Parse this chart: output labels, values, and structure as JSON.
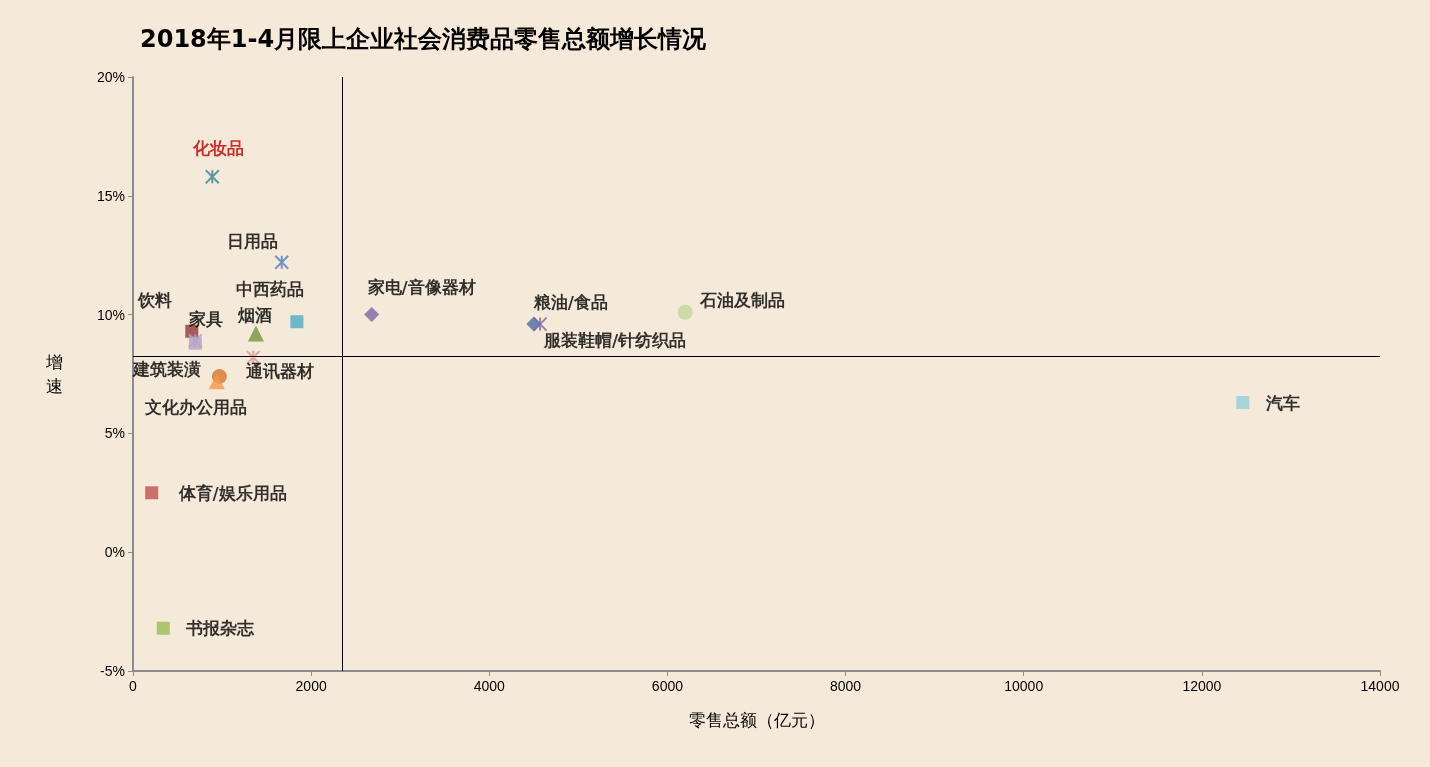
{
  "chart_data": {
    "type": "scatter",
    "title": "2018年1-4月限上企业社会消费品零售总额增长情况",
    "xlabel": "零售总额（亿元）",
    "ylabel": "增速",
    "xlim": [
      0,
      14000
    ],
    "xticks": [
      0,
      2000,
      4000,
      6000,
      8000,
      10000,
      12000,
      14000
    ],
    "ylim": [
      -5,
      20
    ],
    "yticks": [
      {
        "value": -5,
        "label": "-5%"
      },
      {
        "value": 0,
        "label": "0%"
      },
      {
        "value": 5,
        "label": "5%"
      },
      {
        "value": 10,
        "label": "10%"
      },
      {
        "value": 15,
        "label": "15%"
      },
      {
        "value": 20,
        "label": "20%"
      }
    ],
    "grid": false,
    "legend": false,
    "ref_lines": [
      {
        "axis": "x",
        "value": 2350,
        "color": "#000000"
      },
      {
        "axis": "y",
        "value": 8.25,
        "color": "#000000"
      }
    ],
    "series": [
      {
        "name": "化妆品",
        "color": "#31859c",
        "marker": "cross",
        "x": [
          890
        ],
        "values": [
          15.8
        ]
      },
      {
        "name": "日用品",
        "color": "#4f81bd",
        "marker": "cross",
        "x": [
          1670
        ],
        "values": [
          12.2
        ]
      },
      {
        "name": "中西药品",
        "color": "#4bacc6",
        "marker": "square",
        "x": [
          1840
        ],
        "values": [
          9.7
        ]
      },
      {
        "name": "烟酒",
        "color": "#77933c",
        "marker": "triangle",
        "x": [
          1380
        ],
        "values": [
          9.2
        ]
      },
      {
        "name": "饮料",
        "color": "#953735",
        "marker": "square",
        "x": [
          660
        ],
        "values": [
          9.3
        ]
      },
      {
        "name": "家具",
        "color": "#b3a2c7",
        "marker": "cross",
        "x": [
          700
        ],
        "values": [
          8.9
        ]
      },
      {
        "name": "建筑装潢",
        "color": "#b3a2c7",
        "marker": "square",
        "x": [
          700
        ],
        "values": [
          8.8
        ]
      },
      {
        "name": "通讯器材",
        "color": "#d99694",
        "marker": "cross",
        "x": [
          1350
        ],
        "values": [
          8.2
        ]
      },
      {
        "name": "文化办公用品",
        "color": "#d2782e",
        "marker": "circle",
        "x": [
          970
        ],
        "values": [
          7.4
        ]
      },
      {
        "color": "#f79646",
        "marker": "triangle",
        "x": [
          940
        ],
        "values": [
          7.2
        ]
      },
      {
        "name": "家电/音像器材",
        "color": "#8064a2",
        "marker": "diamond",
        "x": [
          2680
        ],
        "values": [
          10.0
        ]
      },
      {
        "name": "粮油/食品",
        "color": "#4a6fa5",
        "marker": "diamond",
        "x": [
          4500
        ],
        "values": [
          9.6
        ]
      },
      {
        "name": "服装鞋帽/针纺织品",
        "color": "#8064a2",
        "marker": "cross",
        "x": [
          4570
        ],
        "values": [
          9.6
        ]
      },
      {
        "name": "石油及制品",
        "color": "#c3d69b",
        "marker": "circle",
        "x": [
          6200
        ],
        "values": [
          10.1
        ]
      },
      {
        "name": "汽车",
        "color": "#93cddd",
        "marker": "square",
        "x": [
          12460
        ],
        "values": [
          6.3
        ]
      },
      {
        "name": "体育/娱乐用品",
        "color": "#c0504d",
        "marker": "square",
        "x": [
          210
        ],
        "values": [
          2.5
        ]
      },
      {
        "name": "书报杂志",
        "color": "#9bbb59",
        "marker": "square",
        "x": [
          340
        ],
        "values": [
          -3.2
        ]
      }
    ]
  }
}
